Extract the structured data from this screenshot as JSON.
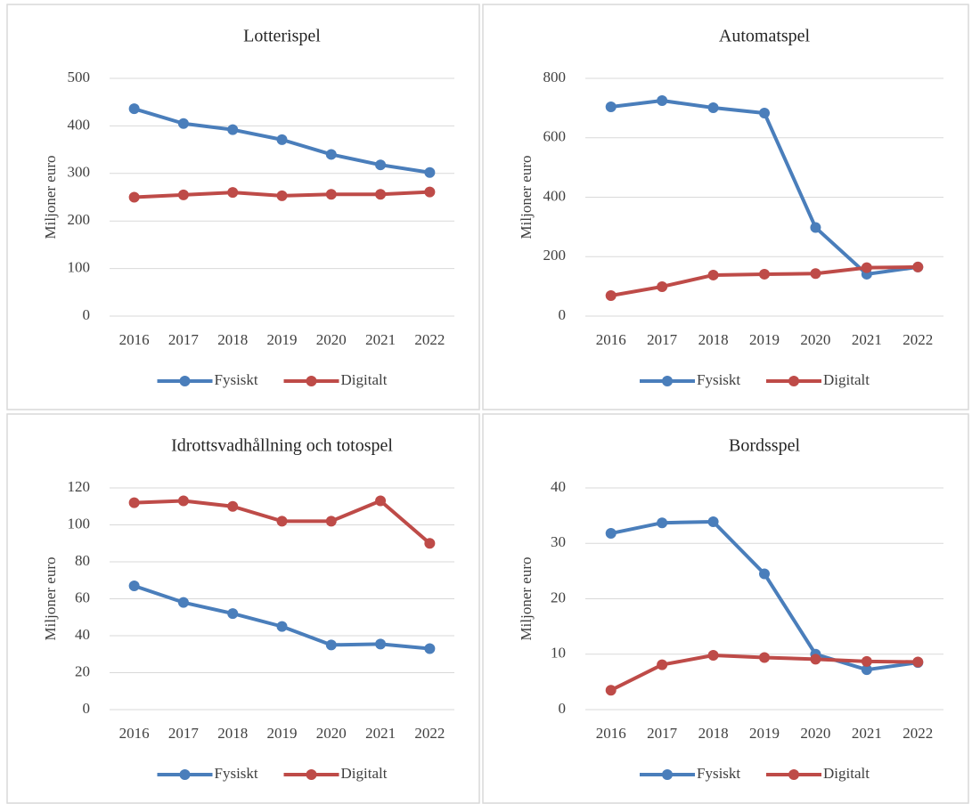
{
  "chart_data": [
    {
      "type": "line",
      "title": "Lotterispel",
      "ylabel": "Miljoner euro",
      "categories": [
        "2016",
        "2017",
        "2018",
        "2019",
        "2020",
        "2021",
        "2022"
      ],
      "series": [
        {
          "name": "Fysiskt",
          "color": "#4a7ebb",
          "values": [
            436,
            405,
            392,
            371,
            340,
            318,
            302
          ]
        },
        {
          "name": "Digitalt",
          "color": "#be4b48",
          "values": [
            250,
            255,
            260,
            253,
            256,
            256,
            261
          ]
        }
      ],
      "ylim": [
        0,
        500
      ],
      "yticks": [
        0,
        100,
        200,
        300,
        400,
        500
      ],
      "grid": true,
      "legend": "bottom"
    },
    {
      "type": "line",
      "title": "Automatspel",
      "ylabel": "Miljoner euro",
      "categories": [
        "2016",
        "2017",
        "2018",
        "2019",
        "2020",
        "2021",
        "2022"
      ],
      "series": [
        {
          "name": "Fysiskt",
          "color": "#4a7ebb",
          "values": [
            704,
            725,
            701,
            683,
            298,
            141,
            165
          ]
        },
        {
          "name": "Digitalt",
          "color": "#be4b48",
          "values": [
            69,
            99,
            138,
            141,
            143,
            163,
            165
          ]
        }
      ],
      "ylim": [
        0,
        800
      ],
      "yticks": [
        0,
        200,
        400,
        600,
        800
      ],
      "grid": true,
      "legend": "bottom"
    },
    {
      "type": "line",
      "title": "Idrottsvadhållning och totospel",
      "ylabel": "Miljoner euro",
      "categories": [
        "2016",
        "2017",
        "2018",
        "2019",
        "2020",
        "2021",
        "2022"
      ],
      "series": [
        {
          "name": "Fysiskt",
          "color": "#4a7ebb",
          "values": [
            67,
            58,
            52,
            45,
            35,
            35.5,
            33
          ]
        },
        {
          "name": "Digitalt",
          "color": "#be4b48",
          "values": [
            112,
            113,
            110,
            102,
            102,
            113,
            90
          ]
        }
      ],
      "ylim": [
        0,
        120
      ],
      "yticks": [
        0,
        20,
        40,
        60,
        80,
        100,
        120
      ],
      "grid": true,
      "legend": "bottom"
    },
    {
      "type": "line",
      "title": "Bordsspel",
      "ylabel": "Miljoner euro",
      "categories": [
        "2016",
        "2017",
        "2018",
        "2019",
        "2020",
        "2021",
        "2022"
      ],
      "series": [
        {
          "name": "Fysiskt",
          "color": "#4a7ebb",
          "values": [
            31.8,
            33.7,
            33.9,
            24.5,
            10,
            7.2,
            8.5
          ]
        },
        {
          "name": "Digitalt",
          "color": "#be4b48",
          "values": [
            3.5,
            8.1,
            9.8,
            9.4,
            9.1,
            8.7,
            8.6
          ]
        }
      ],
      "ylim": [
        0,
        40
      ],
      "yticks": [
        0,
        10,
        20,
        30,
        40
      ],
      "grid": true,
      "legend": "bottom"
    }
  ]
}
